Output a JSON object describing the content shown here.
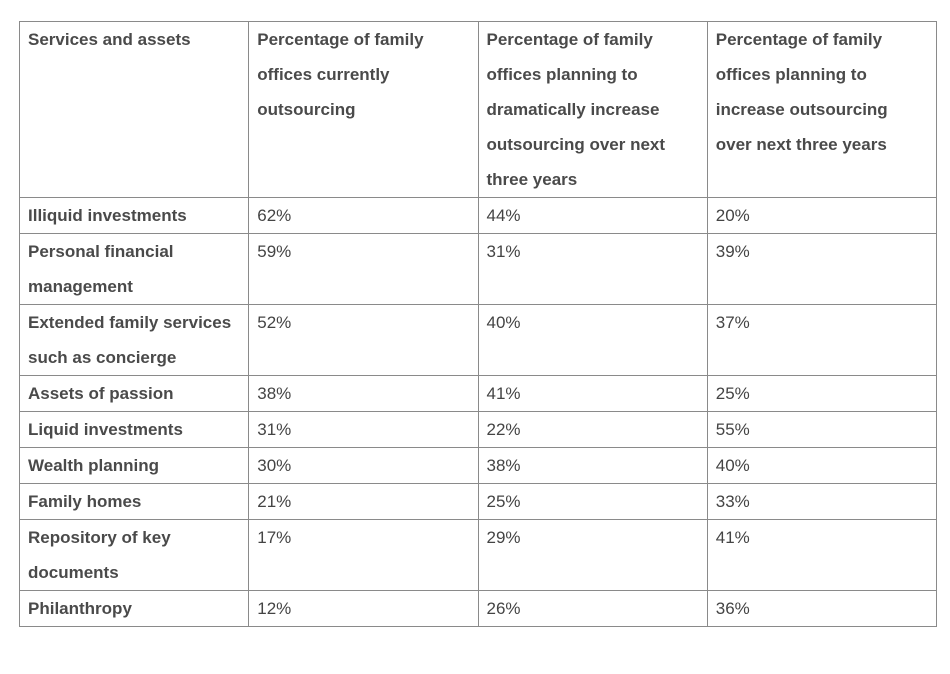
{
  "table": {
    "header": [
      "Services and assets",
      "Percentage of family offices currently outsourcing",
      "Percentage of family offices planning to dramatically increase outsourcing over next three years",
      "Percentage of family offices planning to increase outsourcing over next three years"
    ],
    "rows": [
      [
        "Illiquid investments",
        "62%",
        "44%",
        "20%"
      ],
      [
        "Personal financial management",
        "59%",
        "31%",
        "39%"
      ],
      [
        "Extended family services such as concierge",
        "52%",
        "40%",
        "37%"
      ],
      [
        "Assets of passion",
        "38%",
        "41%",
        "25%"
      ],
      [
        "Liquid investments",
        "31%",
        "22%",
        "55%"
      ],
      [
        "Wealth planning",
        "30%",
        "38%",
        "40%"
      ],
      [
        "Family homes",
        "21%",
        "25%",
        "33%"
      ],
      [
        "Repository of key documents",
        "17%",
        "29%",
        "41%"
      ],
      [
        "Philanthropy",
        "12%",
        "26%",
        "36%"
      ]
    ]
  }
}
